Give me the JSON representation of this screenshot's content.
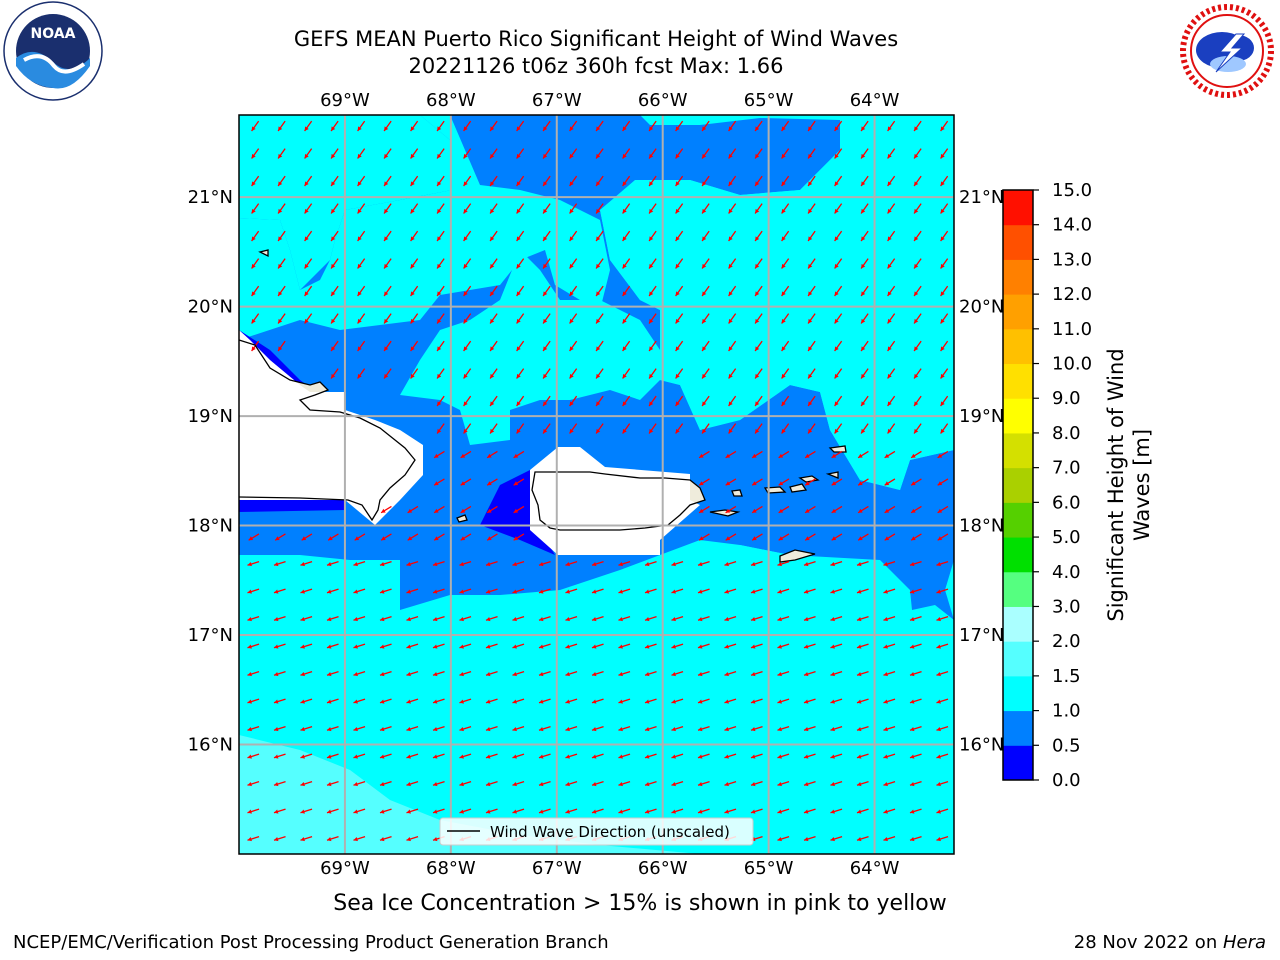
{
  "title": {
    "line1": "GEFS MEAN Puerto Rico Significant Height of Wind Waves",
    "line2": "20221126 t06z 360h fcst   Max: 1.66"
  },
  "logos": {
    "left": "noaa-logo",
    "right": "nws-logo"
  },
  "map": {
    "lon_labels": [
      "69°W",
      "68°W",
      "67°W",
      "66°W",
      "65°W",
      "64°W"
    ],
    "lat_labels": [
      "21°N",
      "20°N",
      "19°N",
      "18°N",
      "17°N",
      "16°N"
    ],
    "lon_range": [
      -70.0,
      -63.25
    ],
    "lat_range": [
      15.0,
      21.75
    ],
    "gridlines": true,
    "colors": {
      "ocean_lt": "#00ffff",
      "ocean_mid": "#0080ff",
      "ocean_dk": "#0000ff",
      "ocean_pale": "#55ffff",
      "land": "#efecdc",
      "arrows": "#ff0000"
    },
    "legend": {
      "label": "Wind Wave Direction (unscaled)",
      "position": "bottom-center"
    }
  },
  "colorbar": {
    "label": "Significant Height of Wind Waves [m]",
    "ticks": [
      "0.0",
      "0.5",
      "1.0",
      "1.5",
      "2.0",
      "3.0",
      "4.0",
      "5.0",
      "6.0",
      "7.0",
      "8.0",
      "9.0",
      "10.0",
      "11.0",
      "12.0",
      "13.0",
      "14.0",
      "15.0"
    ],
    "colors": [
      "#0000ff",
      "#0080ff",
      "#00ffff",
      "#55ffff",
      "#aaffff",
      "#55ff80",
      "#00e000",
      "#55d000",
      "#aad000",
      "#d4e000",
      "#ffff00",
      "#ffe000",
      "#ffc000",
      "#ffa000",
      "#ff8000",
      "#ff5000",
      "#ff1000"
    ]
  },
  "footer": {
    "sea_ice": "Sea Ice Concentration > 15% is shown in pink to yellow",
    "branch": "NCEP/EMC/Verification Post Processing Product Generation Branch",
    "date_prefix": "28 Nov 2022 on ",
    "date_machine": "Hera"
  }
}
